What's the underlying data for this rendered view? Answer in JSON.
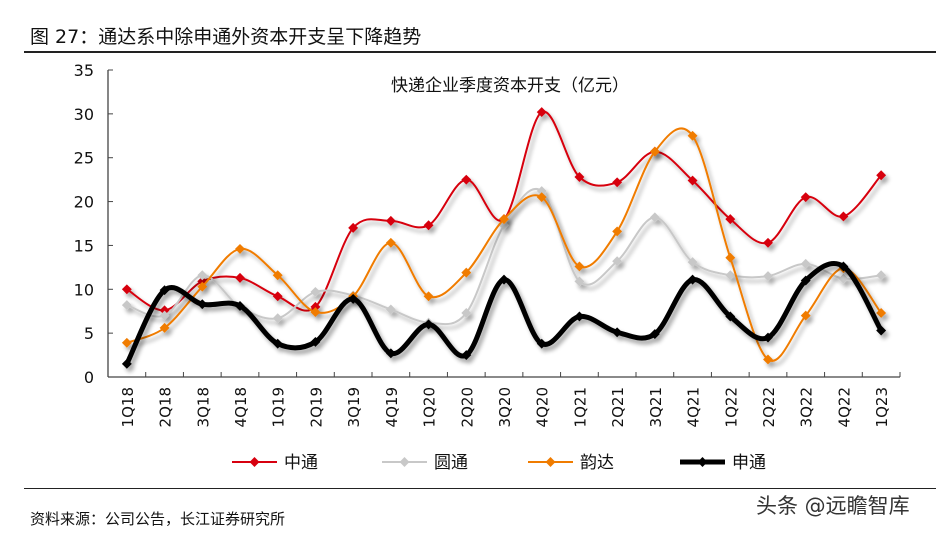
{
  "figure_title": "图 27：通达系中除申通外资本开支呈下降趋势",
  "source": "资料来源：公司公告，长江证券研究所",
  "watermark": "头条 @远瞻智库",
  "chart_data": {
    "type": "line",
    "title": "快递企业季度资本开支（亿元）",
    "xlabel": "",
    "ylabel": "",
    "ylim": [
      0,
      35
    ],
    "yticks": [
      0,
      5,
      10,
      15,
      20,
      25,
      30,
      35
    ],
    "grid": false,
    "legend_placement": "bottom",
    "smooth": true,
    "categories": [
      "1Q18",
      "2Q18",
      "3Q18",
      "4Q18",
      "1Q19",
      "2Q19",
      "3Q19",
      "4Q19",
      "1Q20",
      "2Q20",
      "3Q20",
      "4Q20",
      "1Q21",
      "2Q21",
      "3Q21",
      "4Q21",
      "1Q22",
      "2Q22",
      "3Q22",
      "4Q22",
      "1Q23"
    ],
    "series": [
      {
        "name": "中通",
        "color": "#d7000f",
        "values": [
          10.0,
          7.6,
          10.9,
          11.3,
          9.2,
          8.0,
          17.0,
          17.8,
          17.3,
          22.5,
          18.0,
          30.2,
          22.8,
          22.2,
          25.7,
          22.4,
          18.0,
          15.3,
          20.5,
          18.3,
          23.0
        ]
      },
      {
        "name": "圆通",
        "color": "#c8c8c8",
        "values": [
          8.2,
          7.0,
          11.6,
          8.0,
          6.7,
          9.7,
          9.3,
          7.7,
          6.2,
          7.3,
          17.3,
          21.2,
          10.9,
          13.2,
          18.2,
          13.1,
          11.6,
          11.5,
          12.9,
          11.2,
          11.6
        ]
      },
      {
        "name": "韵达",
        "color": "#f07c00",
        "values": [
          3.9,
          5.6,
          10.3,
          14.6,
          11.6,
          7.4,
          9.2,
          15.3,
          9.2,
          11.9,
          18.0,
          20.5,
          12.6,
          16.6,
          25.7,
          27.5,
          13.6,
          2.0,
          7.0,
          12.4,
          7.3
        ]
      },
      {
        "name": "申通",
        "color": "#000000",
        "values": [
          1.5,
          9.9,
          8.3,
          8.1,
          3.8,
          4.0,
          8.9,
          2.7,
          6.0,
          2.5,
          11.1,
          3.8,
          6.9,
          5.1,
          4.9,
          11.1,
          6.9,
          4.5,
          11.0,
          12.6,
          5.3
        ]
      }
    ]
  }
}
